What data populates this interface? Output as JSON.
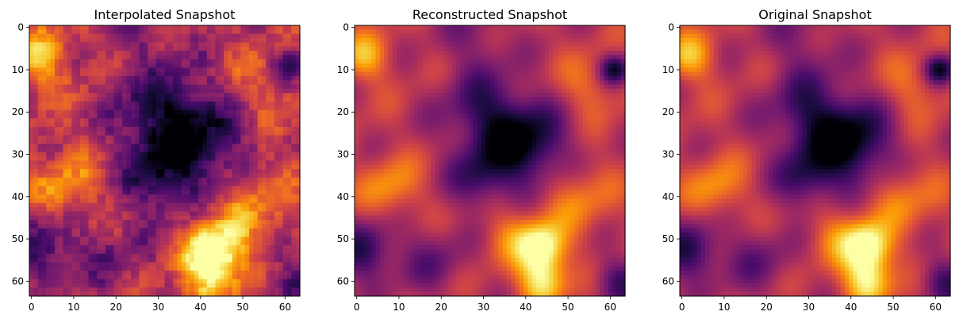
{
  "figure": {
    "colormap": "inferno",
    "colormap_stops": [
      "#000004",
      "#1b0c41",
      "#4a0c6b",
      "#781c6d",
      "#a52c60",
      "#cf4446",
      "#ed6925",
      "#fb9b06",
      "#f7d13d",
      "#fcffa4"
    ]
  },
  "chart_data": [
    {
      "type": "heatmap",
      "title": "Interpolated Snapshot",
      "xlabel": "",
      "ylabel": "",
      "rows": 64,
      "cols": 64,
      "xlim": [
        -0.5,
        63.5
      ],
      "ylim": [
        63.5,
        -0.5
      ],
      "xticks": [
        0,
        10,
        20,
        30,
        40,
        50,
        60
      ],
      "yticks": [
        0,
        10,
        20,
        30,
        40,
        50,
        60
      ],
      "render": "blocky",
      "field": {
        "base": 0.5,
        "features": [
          {
            "cx": 40,
            "cy": 28,
            "r": 9,
            "a": -0.42
          },
          {
            "cx": 30,
            "cy": 20,
            "r": 8,
            "a": -0.28
          },
          {
            "cx": 29,
            "cy": 36,
            "r": 6,
            "a": -0.25
          },
          {
            "cx": 44,
            "cy": 52,
            "r": 5,
            "a": 0.45
          },
          {
            "cx": 42,
            "cy": 58,
            "r": 5,
            "a": 0.42
          },
          {
            "cx": 52,
            "cy": 40,
            "r": 7,
            "a": 0.25
          },
          {
            "cx": 2,
            "cy": 7,
            "r": 5,
            "a": 0.32
          },
          {
            "cx": 61,
            "cy": 9,
            "r": 3,
            "a": -0.4
          },
          {
            "cx": 3,
            "cy": 52,
            "r": 6,
            "a": -0.3
          },
          {
            "cx": 8,
            "cy": 38,
            "r": 6,
            "a": 0.25
          },
          {
            "cx": 20,
            "cy": 55,
            "r": 7,
            "a": -0.15
          },
          {
            "cx": 28,
            "cy": 2,
            "r": 7,
            "a": -0.1
          },
          {
            "cx": 55,
            "cy": 14,
            "r": 7,
            "a": 0.15
          },
          {
            "cx": 62,
            "cy": 60,
            "r": 5,
            "a": -0.25
          }
        ]
      }
    },
    {
      "type": "heatmap",
      "title": "Reconstructed Snapshot",
      "xlabel": "",
      "ylabel": "",
      "rows": 64,
      "cols": 64,
      "xlim": [
        -0.5,
        63.5
      ],
      "ylim": [
        63.5,
        -0.5
      ],
      "xticks": [
        0,
        10,
        20,
        30,
        40,
        50,
        60
      ],
      "yticks": [
        0,
        10,
        20,
        30,
        40,
        50,
        60
      ],
      "render": "smooth",
      "field": {
        "base": 0.5,
        "features": [
          {
            "cx": 40,
            "cy": 28,
            "r": 7,
            "a": -0.48
          },
          {
            "cx": 30,
            "cy": 20,
            "r": 7,
            "a": -0.3
          },
          {
            "cx": 29,
            "cy": 36,
            "r": 5,
            "a": -0.28
          },
          {
            "cx": 44,
            "cy": 52,
            "r": 4,
            "a": 0.5
          },
          {
            "cx": 44,
            "cy": 60,
            "r": 4,
            "a": 0.45
          },
          {
            "cx": 37,
            "cy": 49,
            "r": 5,
            "a": 0.2
          },
          {
            "cx": 52,
            "cy": 40,
            "r": 6,
            "a": 0.22
          },
          {
            "cx": 2,
            "cy": 7,
            "r": 4,
            "a": 0.32
          },
          {
            "cx": 61,
            "cy": 10,
            "r": 2.5,
            "a": -0.45
          },
          {
            "cx": 2,
            "cy": 53,
            "r": 5,
            "a": -0.35
          },
          {
            "cx": 8,
            "cy": 38,
            "r": 5,
            "a": 0.25
          },
          {
            "cx": 18,
            "cy": 55,
            "r": 6,
            "a": -0.18
          },
          {
            "cx": 28,
            "cy": 2,
            "r": 6,
            "a": -0.15
          },
          {
            "cx": 55,
            "cy": 14,
            "r": 5,
            "a": 0.18
          },
          {
            "cx": 62,
            "cy": 60,
            "r": 4,
            "a": -0.28
          }
        ]
      }
    },
    {
      "type": "heatmap",
      "title": "Original Snapshot",
      "xlabel": "",
      "ylabel": "",
      "rows": 64,
      "cols": 64,
      "xlim": [
        -0.5,
        63.5
      ],
      "ylim": [
        63.5,
        -0.5
      ],
      "xticks": [
        0,
        10,
        20,
        30,
        40,
        50,
        60
      ],
      "yticks": [
        0,
        10,
        20,
        30,
        40,
        50,
        60
      ],
      "render": "smooth",
      "field": {
        "base": 0.5,
        "features": [
          {
            "cx": 40,
            "cy": 28,
            "r": 7,
            "a": -0.5
          },
          {
            "cx": 30,
            "cy": 20,
            "r": 7,
            "a": -0.3
          },
          {
            "cx": 29,
            "cy": 36,
            "r": 5,
            "a": -0.28
          },
          {
            "cx": 44,
            "cy": 52,
            "r": 4,
            "a": 0.52
          },
          {
            "cx": 44,
            "cy": 60,
            "r": 4,
            "a": 0.47
          },
          {
            "cx": 37,
            "cy": 49,
            "r": 5,
            "a": 0.2
          },
          {
            "cx": 52,
            "cy": 40,
            "r": 6,
            "a": 0.22
          },
          {
            "cx": 2,
            "cy": 7,
            "r": 4,
            "a": 0.33
          },
          {
            "cx": 61,
            "cy": 10,
            "r": 2.5,
            "a": -0.47
          },
          {
            "cx": 2,
            "cy": 53,
            "r": 5,
            "a": -0.36
          },
          {
            "cx": 8,
            "cy": 38,
            "r": 5,
            "a": 0.25
          },
          {
            "cx": 18,
            "cy": 55,
            "r": 6,
            "a": -0.18
          },
          {
            "cx": 28,
            "cy": 2,
            "r": 6,
            "a": -0.15
          },
          {
            "cx": 55,
            "cy": 14,
            "r": 5,
            "a": 0.18
          },
          {
            "cx": 62,
            "cy": 60,
            "r": 4,
            "a": -0.28
          }
        ]
      }
    }
  ]
}
